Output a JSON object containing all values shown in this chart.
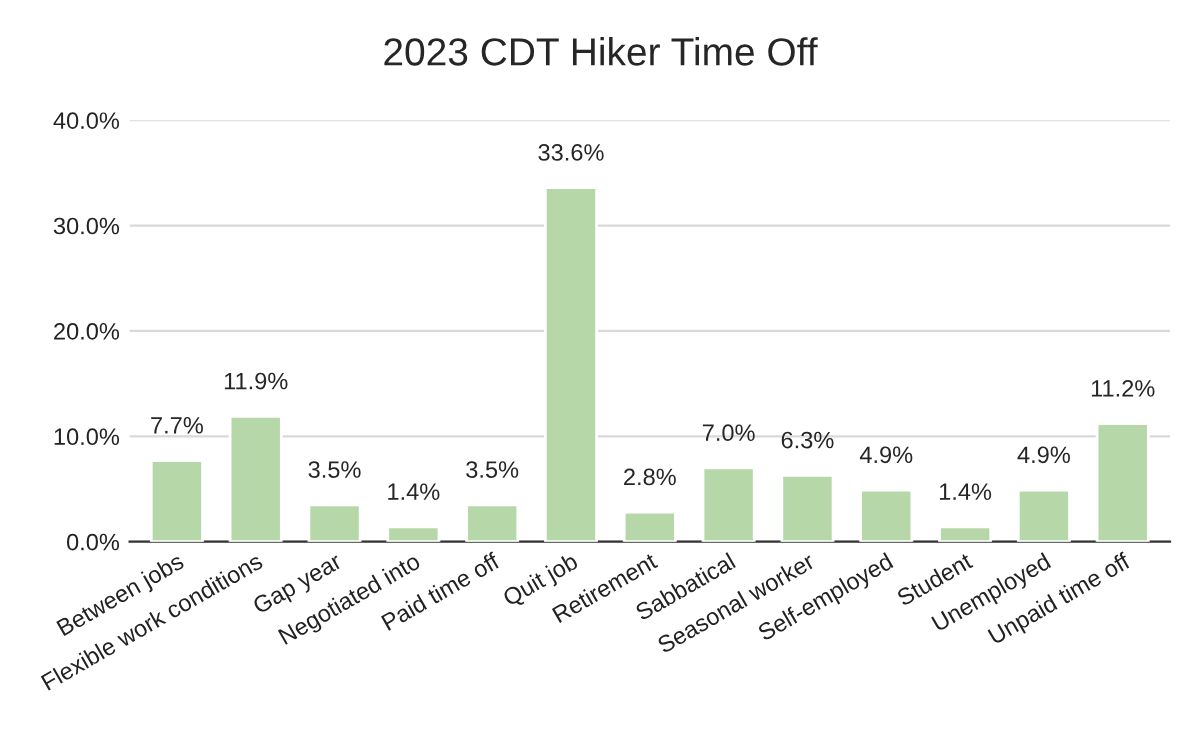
{
  "chart_data": {
    "type": "bar",
    "title": "2023 CDT Hiker Time Off",
    "categories": [
      "Between jobs",
      "Flexible work conditions",
      "Gap year",
      "Negotiated into",
      "Paid time off",
      "Quit job",
      "Retirement",
      "Sabbatical",
      "Seasonal worker",
      "Self-employed",
      "Student",
      "Unemployed",
      "Unpaid time off"
    ],
    "values": [
      7.7,
      11.9,
      3.5,
      1.4,
      3.5,
      33.6,
      2.8,
      7.0,
      6.3,
      4.9,
      1.4,
      4.9,
      11.2
    ],
    "value_labels": [
      "7.7%",
      "11.9%",
      "3.5%",
      "1.4%",
      "3.5%",
      "33.6%",
      "2.8%",
      "7.0%",
      "6.3%",
      "4.9%",
      "1.4%",
      "4.9%",
      "11.2%"
    ],
    "color": "#b6d7a8",
    "ylim": [
      0,
      40
    ],
    "yticks": [
      {
        "value": 0,
        "label": "0.0%"
      },
      {
        "value": 10,
        "label": "10.0%"
      },
      {
        "value": 20,
        "label": "20.0%"
      },
      {
        "value": 30,
        "label": "30.0%"
      },
      {
        "value": 40,
        "label": "40.0%"
      }
    ],
    "grid": "y"
  }
}
